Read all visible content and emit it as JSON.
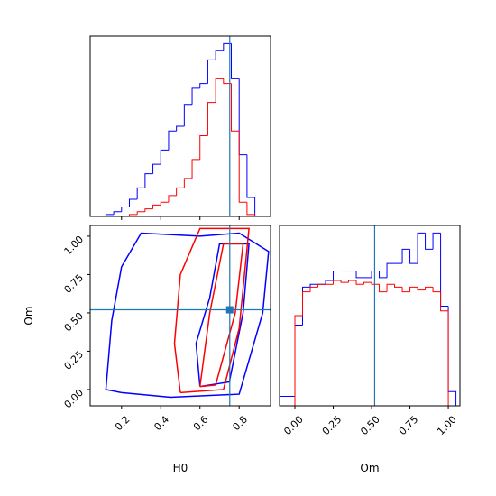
{
  "chart_data": [
    {
      "type": "histogram",
      "bins": [
        0.08,
        0.12,
        0.16,
        0.2,
        0.24,
        0.28,
        0.32,
        0.36,
        0.4,
        0.44,
        0.48,
        0.52,
        0.56,
        0.6,
        0.64,
        0.68,
        0.72,
        0.76,
        0.8,
        0.84,
        0.88,
        0.92
      ],
      "series": [
        {
          "color": "#0000ff",
          "values": [
            0,
            2,
            5,
            10,
            18,
            30,
            45,
            55,
            70,
            90,
            95,
            118,
            135,
            140,
            165,
            175,
            182,
            145,
            65,
            20,
            0
          ]
        },
        {
          "color": "#ff0000",
          "values": [
            0,
            0,
            0,
            0,
            2,
            5,
            8,
            12,
            15,
            22,
            30,
            40,
            60,
            85,
            120,
            145,
            140,
            90,
            15,
            2,
            0
          ]
        }
      ],
      "xlim": [
        0.04,
        0.96
      ],
      "ylim": [
        0,
        190
      ],
      "xticks": [
        0.2,
        0.4,
        0.6,
        0.8
      ],
      "tick_labels": false,
      "truth_x": 0.752,
      "truth_color": "#1f77b4"
    },
    {
      "type": "contour",
      "xlabel": "H0",
      "ylabel": "Om",
      "series": [
        {
          "color": "#0000ff",
          "x": [
            0.2,
            0.45,
            0.8,
            0.92,
            0.95,
            0.8,
            0.6,
            0.3,
            0.2,
            0.15,
            0.12,
            0.2
          ],
          "y": [
            -0.02,
            -0.05,
            -0.03,
            0.5,
            0.9,
            1.02,
            1.0,
            1.02,
            0.8,
            0.45,
            0.0,
            -0.02
          ]
        },
        {
          "color": "#0000ff",
          "x": [
            0.6,
            0.75,
            0.82,
            0.85,
            0.7,
            0.65,
            0.58,
            0.6
          ],
          "y": [
            0.02,
            0.05,
            0.5,
            0.95,
            0.95,
            0.6,
            0.3,
            0.02
          ]
        },
        {
          "color": "#ff0000",
          "x": [
            0.5,
            0.72,
            0.8,
            0.85,
            0.6,
            0.5,
            0.47,
            0.5
          ],
          "y": [
            -0.02,
            0.0,
            0.4,
            1.05,
            1.05,
            0.75,
            0.3,
            -0.02
          ]
        },
        {
          "color": "#ff0000",
          "x": [
            0.6,
            0.68,
            0.78,
            0.82,
            0.72,
            0.65,
            0.6
          ],
          "y": [
            0.02,
            0.03,
            0.5,
            0.95,
            0.95,
            0.5,
            0.02
          ]
        }
      ],
      "xlim": [
        0.04,
        0.96
      ],
      "ylim": [
        -0.106,
        1.07
      ],
      "xticks": [
        0.2,
        0.4,
        0.6,
        0.8
      ],
      "yticks": [
        {
          "value": 0,
          "label": "0.00"
        },
        {
          "value": 0.25,
          "label": "0.25"
        },
        {
          "value": 0.5,
          "label": "0.50"
        },
        {
          "value": 0.75,
          "label": "0.75"
        },
        {
          "value": 1,
          "label": "1.00"
        }
      ],
      "truth_x": 0.752,
      "truth_y": 0.52,
      "truth_color": "#1f77b4"
    },
    {
      "type": "histogram",
      "xlabel": "Om",
      "bins": [
        -0.1,
        -0.05,
        0,
        0.05,
        0.1,
        0.15,
        0.2,
        0.25,
        0.3,
        0.35,
        0.4,
        0.45,
        0.5,
        0.55,
        0.6,
        0.65,
        0.7,
        0.75,
        0.8,
        0.85,
        0.9,
        0.95,
        1.0,
        1.05
      ],
      "series": [
        {
          "color": "#0000ff",
          "values": [
            10,
            10,
            85,
            125,
            128,
            128,
            132,
            142,
            142,
            142,
            135,
            135,
            142,
            135,
            150,
            150,
            165,
            150,
            182,
            165,
            182,
            105,
            15
          ]
        },
        {
          "color": "#ff0000",
          "values": [
            0,
            0,
            95,
            120,
            125,
            128,
            128,
            132,
            130,
            132,
            128,
            130,
            128,
            120,
            128,
            125,
            120,
            125,
            122,
            125,
            120,
            100,
            0
          ]
        }
      ],
      "xlim": [
        -0.1,
        1.076
      ],
      "ylim": [
        0,
        190
      ],
      "xticks": [
        {
          "value": 0,
          "label": "0.00"
        },
        {
          "value": 0.25,
          "label": "0.25"
        },
        {
          "value": 0.5,
          "label": "0.50"
        },
        {
          "value": 0.75,
          "label": "0.75"
        },
        {
          "value": 1,
          "label": "1.00"
        }
      ],
      "truth_x": 0.52,
      "truth_color": "#1f77b4"
    }
  ]
}
